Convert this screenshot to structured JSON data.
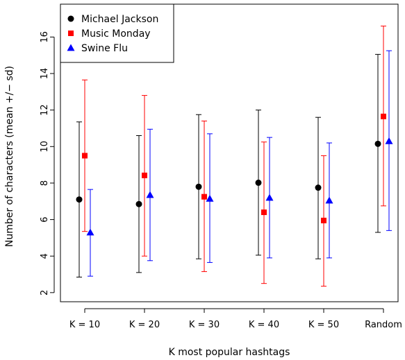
{
  "chart_data": {
    "type": "scatter",
    "title": "",
    "xlabel": "K most popular hashtags",
    "ylabel": "Number of characters (mean +/− sd)",
    "categories": [
      "K = 10",
      "K = 20",
      "K = 30",
      "K = 40",
      "K = 50",
      "Random"
    ],
    "ylim": [
      1.5,
      17.8
    ],
    "yticks": [
      2,
      4,
      6,
      8,
      10,
      12,
      14,
      16
    ],
    "ytick_labels": [
      "2",
      "4",
      "6",
      "8",
      "10",
      "12",
      "14",
      "16"
    ],
    "grid": false,
    "legend_position": "top-left",
    "series": [
      {
        "name": "Michael Jackson",
        "color": "#000000",
        "marker": "circle",
        "mean": [
          7.1,
          6.85,
          7.8,
          8.02,
          7.75,
          10.15
        ],
        "low": [
          2.85,
          3.1,
          3.85,
          4.05,
          3.85,
          5.3
        ],
        "high": [
          11.35,
          10.6,
          11.75,
          12.0,
          11.6,
          15.05
        ]
      },
      {
        "name": "Music Monday",
        "color": "#ff0000",
        "marker": "square",
        "mean": [
          9.5,
          8.42,
          7.25,
          6.4,
          5.95,
          11.65
        ],
        "low": [
          5.35,
          4.0,
          3.15,
          2.5,
          2.35,
          6.75
        ],
        "high": [
          13.65,
          12.8,
          11.4,
          10.25,
          9.5,
          16.6
        ]
      },
      {
        "name": "Swine Flu",
        "color": "#0000ff",
        "marker": "triangle",
        "mean": [
          5.3,
          7.35,
          7.15,
          7.2,
          7.05,
          10.3
        ],
        "low": [
          2.9,
          3.75,
          3.65,
          3.9,
          3.9,
          5.4
        ],
        "high": [
          7.65,
          10.95,
          10.7,
          10.5,
          10.2,
          15.25
        ]
      }
    ]
  }
}
